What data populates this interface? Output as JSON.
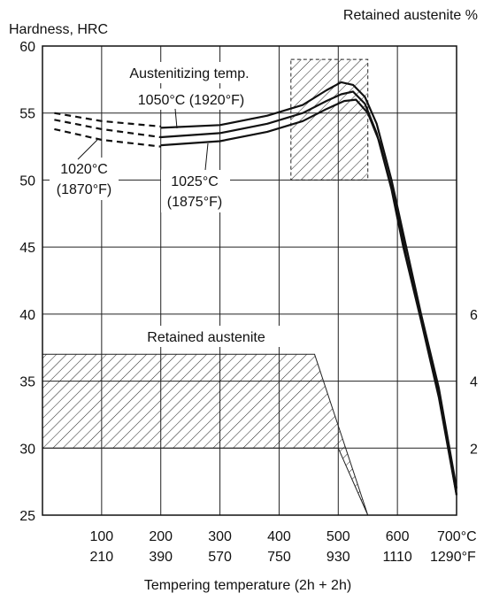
{
  "chart_data": {
    "type": "line",
    "ylabel_left": "Hardness, HRC",
    "ylabel_right": "Retained austenite %",
    "xlabel": "Tempering temperature (2h + 2h)",
    "xlim": [
      0,
      700
    ],
    "ylim": [
      25,
      60
    ],
    "grid": true,
    "y_ticks": [
      "60",
      "55",
      "50",
      "45",
      "40",
      "35",
      "30",
      "25"
    ],
    "right_ticks": [
      {
        "label": "6",
        "y": 40
      },
      {
        "label": "4",
        "y": 35
      },
      {
        "label": "2",
        "y": 30
      }
    ],
    "x_ticks": [
      {
        "x": 100,
        "c": "100",
        "f": "210"
      },
      {
        "x": 200,
        "c": "200",
        "f": "390"
      },
      {
        "x": 300,
        "c": "300",
        "f": "570"
      },
      {
        "x": 400,
        "c": "400",
        "f": "750"
      },
      {
        "x": 500,
        "c": "500",
        "f": "930"
      },
      {
        "x": 600,
        "c": "600",
        "f": "1110"
      },
      {
        "x": 700,
        "c": "700°C",
        "f": "1290°F"
      }
    ],
    "series": [
      {
        "name": "1050°C (1920°F)",
        "dashed": [
          [
            20,
            55.0
          ],
          [
            100,
            54.4
          ],
          [
            200,
            54.0
          ]
        ],
        "solid": [
          [
            200,
            53.9
          ],
          [
            300,
            54.1
          ],
          [
            380,
            54.8
          ],
          [
            440,
            55.6
          ],
          [
            480,
            56.7
          ],
          [
            505,
            57.3
          ],
          [
            525,
            57.1
          ],
          [
            545,
            56.2
          ],
          [
            565,
            54.2
          ],
          [
            590,
            50.0
          ],
          [
            610,
            46.0
          ],
          [
            640,
            40.0
          ],
          [
            670,
            34.5
          ],
          [
            700,
            27.0
          ]
        ]
      },
      {
        "name": "1025°C (1875°F)",
        "dashed": [
          [
            20,
            54.5
          ],
          [
            100,
            53.8
          ],
          [
            200,
            53.2
          ]
        ],
        "solid": [
          [
            200,
            53.2
          ],
          [
            300,
            53.5
          ],
          [
            380,
            54.2
          ],
          [
            440,
            55.0
          ],
          [
            480,
            55.9
          ],
          [
            505,
            56.4
          ],
          [
            525,
            56.6
          ],
          [
            545,
            55.7
          ],
          [
            565,
            53.5
          ],
          [
            590,
            49.3
          ],
          [
            610,
            45.0
          ],
          [
            640,
            39.5
          ],
          [
            670,
            33.8
          ],
          [
            700,
            26.5
          ]
        ]
      },
      {
        "name": "1020°C (1870°F)",
        "dashed": [
          [
            20,
            53.8
          ],
          [
            100,
            53.0
          ],
          [
            200,
            52.5
          ]
        ],
        "solid": [
          [
            200,
            52.6
          ],
          [
            300,
            52.9
          ],
          [
            380,
            53.6
          ],
          [
            440,
            54.4
          ],
          [
            480,
            55.3
          ],
          [
            510,
            55.9
          ],
          [
            530,
            56.0
          ],
          [
            550,
            55.0
          ],
          [
            570,
            52.8
          ],
          [
            595,
            48.6
          ],
          [
            615,
            44.3
          ],
          [
            645,
            38.8
          ],
          [
            675,
            33.0
          ],
          [
            700,
            26.5
          ]
        ]
      }
    ],
    "regions": [
      {
        "name": "secondary-hardness-zone",
        "x": [
          420,
          550
        ],
        "y": [
          50,
          59
        ]
      },
      {
        "name": "Retained austenite",
        "polygon": [
          [
            0,
            37
          ],
          [
            460,
            37
          ],
          [
            550,
            25
          ],
          [
            500,
            30
          ],
          [
            0,
            30
          ]
        ]
      }
    ],
    "annotations": {
      "austenitizing": "Austenitizing temp.",
      "s1050": "1050°C (1920°F)",
      "s1025a": "1025°C",
      "s1025b": "(1875°F)",
      "s1020a": "1020°C",
      "s1020b": "(1870°F)",
      "retained": "Retained austenite"
    }
  }
}
